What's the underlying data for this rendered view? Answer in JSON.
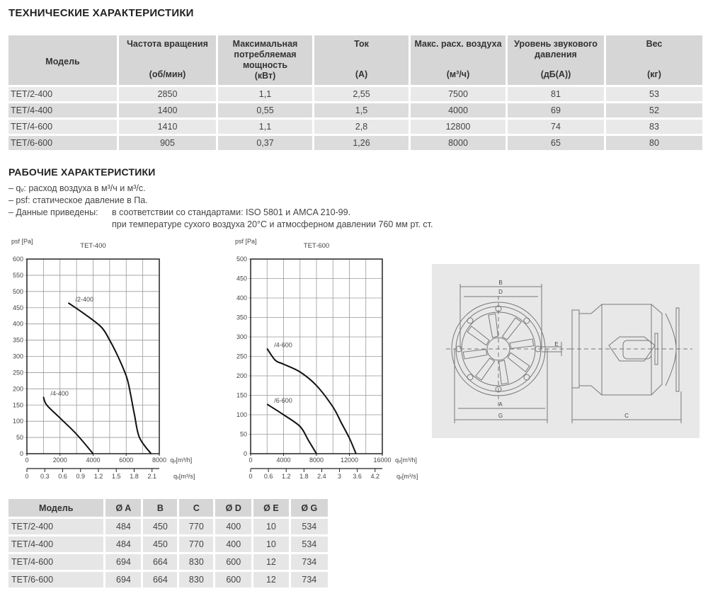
{
  "specs": {
    "title": "ТЕХНИЧЕСКИЕ ХАРАКТЕРИСТИКИ",
    "headers": [
      {
        "label": "Модель",
        "unit": ""
      },
      {
        "label": "Частота вращения",
        "unit": "(об/мин)"
      },
      {
        "label": "Максимальная потребляемая мощность",
        "unit": "(кВт)"
      },
      {
        "label": "Ток",
        "unit": "(А)"
      },
      {
        "label": "Макс. расх. воздуха",
        "unit": "(м³/ч)"
      },
      {
        "label": "Уровень звукового давления",
        "unit": "(дБ(А))"
      },
      {
        "label": "Вес",
        "unit": "(кг)"
      }
    ],
    "rows": [
      [
        "TET/2-400",
        "2850",
        "1,1",
        "2,55",
        "7500",
        "81",
        "53"
      ],
      [
        "TET/4-400",
        "1400",
        "0,55",
        "1,5",
        "4000",
        "69",
        "52"
      ],
      [
        "TET/4-600",
        "1410",
        "1,1",
        "2,8",
        "12800",
        "74",
        "83"
      ],
      [
        "TET/6-600",
        "905",
        "0,37",
        "1,26",
        "8000",
        "65",
        "80"
      ]
    ]
  },
  "performance": {
    "title": "РАБОЧИЕ ХАРАКТЕРИСТИКИ",
    "notes": [
      "– qᵥ: расход воздуха в м³/ч и м³/с.",
      "– psf: статическое давление в Па.",
      "– Данные приведены:"
    ],
    "standards": [
      "в соответствии со стандартами: ISO 5801 и AMCA 210-99.",
      "при температуре сухого воздуха 20°C и атмосферном давлении 760 мм рт. ст."
    ]
  },
  "chart_data": [
    {
      "type": "line",
      "title": "TET-400",
      "ylabel": "psf [Pa]",
      "xlabel": "qᵥ[m³/h]",
      "x2label": "qᵥ[m³/s]",
      "xlim": [
        0,
        8000
      ],
      "ylim": [
        0,
        600
      ],
      "xticks": [
        0,
        2000,
        4000,
        6000,
        8000
      ],
      "xgrid_step": 1000,
      "yticks": [
        0,
        50,
        100,
        150,
        200,
        250,
        300,
        350,
        400,
        450,
        500,
        550,
        600
      ],
      "x2ticks": [
        "0",
        "0.3",
        "0.6",
        "0.9",
        "1.2",
        "1.5",
        "1.8",
        "2.1"
      ],
      "grid": true,
      "series": [
        {
          "name": "/2-400",
          "x": [
            2500,
            3500,
            4500,
            5000,
            5500,
            6000,
            6200,
            6500,
            6800,
            7500
          ],
          "y": [
            465,
            430,
            390,
            350,
            300,
            240,
            200,
            120,
            50,
            0
          ]
        },
        {
          "name": "/4-400",
          "x": [
            1000,
            1200,
            2000,
            3000,
            4000
          ],
          "y": [
            175,
            150,
            110,
            60,
            0
          ]
        }
      ]
    },
    {
      "type": "line",
      "title": "TET-600",
      "ylabel": "psf [Pa]",
      "xlabel": "qᵥ[m³/h]",
      "x2label": "qᵥ[m³/s]",
      "xlim": [
        0,
        16000
      ],
      "ylim": [
        0,
        500
      ],
      "xticks": [
        0,
        4000,
        8000,
        12000,
        16000
      ],
      "xgrid_step": 2000,
      "yticks": [
        0,
        50,
        100,
        150,
        200,
        250,
        300,
        350,
        400,
        450,
        500
      ],
      "x2ticks": [
        "0",
        "0.6",
        "1.2",
        "1.8",
        "2.4",
        "3",
        "3.6",
        "4.2"
      ],
      "grid": true,
      "series": [
        {
          "name": "/4-600",
          "x": [
            2000,
            3000,
            4000,
            6000,
            8000,
            10000,
            11000,
            12000,
            12800
          ],
          "y": [
            270,
            240,
            230,
            210,
            175,
            120,
            80,
            40,
            0
          ]
        },
        {
          "name": "/6-600",
          "x": [
            2000,
            4000,
            6000,
            7000,
            8000
          ],
          "y": [
            127,
            100,
            70,
            35,
            0
          ]
        }
      ]
    }
  ],
  "diagram": {
    "labels": {
      "A": "A",
      "B": "B",
      "C": "C",
      "D": "D",
      "E": "E",
      "G": "G"
    },
    "bg": "#e8e8e8"
  },
  "dims": {
    "headers": [
      "Модель",
      "Ø A",
      "B",
      "C",
      "Ø D",
      "Ø E",
      "Ø G"
    ],
    "rows": [
      [
        "TET/2-400",
        "484",
        "450",
        "770",
        "400",
        "10",
        "534"
      ],
      [
        "TET/4-400",
        "484",
        "450",
        "770",
        "400",
        "10",
        "534"
      ],
      [
        "TET/4-600",
        "694",
        "664",
        "830",
        "600",
        "12",
        "734"
      ],
      [
        "TET/6-600",
        "694",
        "664",
        "830",
        "600",
        "12",
        "734"
      ]
    ]
  }
}
